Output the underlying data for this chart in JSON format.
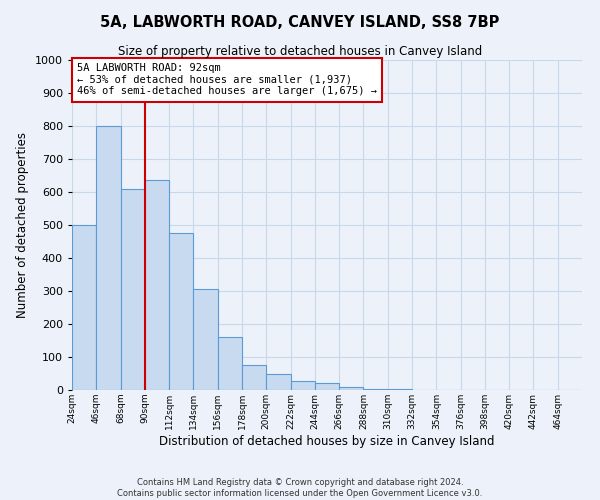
{
  "title": "5A, LABWORTH ROAD, CANVEY ISLAND, SS8 7BP",
  "subtitle": "Size of property relative to detached houses in Canvey Island",
  "xlabel": "Distribution of detached houses by size in Canvey Island",
  "ylabel": "Number of detached properties",
  "bar_values": [
    500,
    800,
    610,
    635,
    475,
    305,
    162,
    77,
    47,
    27,
    20,
    10,
    3,
    2,
    1,
    1,
    1,
    1,
    1,
    1,
    1
  ],
  "bin_edges": [
    24,
    46,
    68,
    90,
    112,
    134,
    156,
    178,
    200,
    222,
    244,
    266,
    288,
    310,
    332,
    354,
    376,
    398,
    420,
    442,
    464,
    486
  ],
  "tick_labels": [
    "24sqm",
    "46sqm",
    "68sqm",
    "90sqm",
    "112sqm",
    "134sqm",
    "156sqm",
    "178sqm",
    "200sqm",
    "222sqm",
    "244sqm",
    "266sqm",
    "288sqm",
    "310sqm",
    "332sqm",
    "354sqm",
    "376sqm",
    "398sqm",
    "420sqm",
    "442sqm",
    "464sqm"
  ],
  "ylim": [
    0,
    1000
  ],
  "yticks": [
    0,
    100,
    200,
    300,
    400,
    500,
    600,
    700,
    800,
    900,
    1000
  ],
  "bar_color": "#c8daf0",
  "bar_edge_color": "#5b9bd5",
  "grid_color": "#c8d8e8",
  "vline_x": 90,
  "vline_color": "#cc0000",
  "annotation_title": "5A LABWORTH ROAD: 92sqm",
  "annotation_line1": "← 53% of detached houses are smaller (1,937)",
  "annotation_line2": "46% of semi-detached houses are larger (1,675) →",
  "annotation_box_color": "#cc0000",
  "footer_line1": "Contains HM Land Registry data © Crown copyright and database right 2024.",
  "footer_line2": "Contains public sector information licensed under the Open Government Licence v3.0.",
  "background_color": "#edf2fa",
  "fig_width": 6.0,
  "fig_height": 5.0,
  "dpi": 100
}
